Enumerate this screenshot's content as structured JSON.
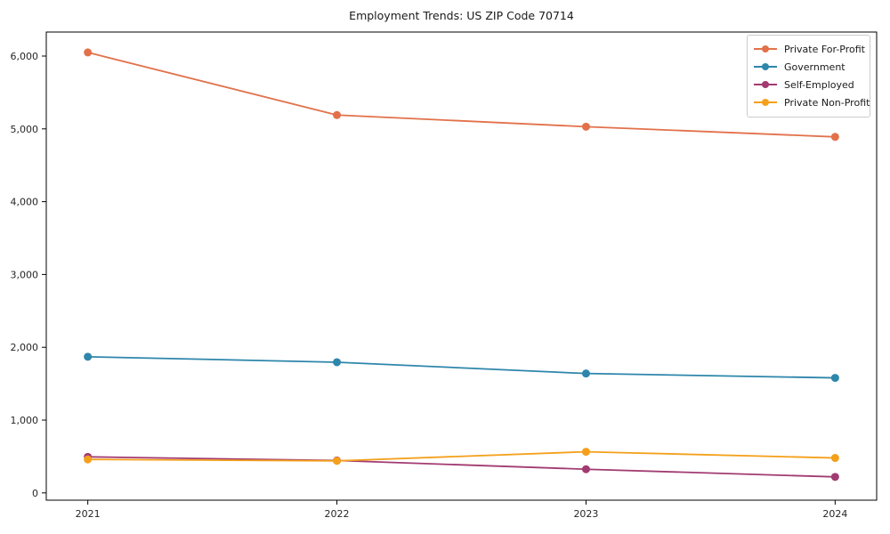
{
  "figure": {
    "title": "Employment Trends: US ZIP Code 70714"
  },
  "chart_data": {
    "type": "line",
    "title": "Employment Trends: US ZIP Code 70714",
    "xlabel": "",
    "ylabel": "",
    "categories": [
      "2021",
      "2022",
      "2023",
      "2024"
    ],
    "series": [
      {
        "name": "Private For-Profit",
        "color": "#E2714A",
        "values": [
          6050,
          5190,
          5030,
          4890
        ]
      },
      {
        "name": "Government",
        "color": "#2E86AB",
        "values": [
          1870,
          1795,
          1640,
          1580
        ]
      },
      {
        "name": "Self-Employed",
        "color": "#A23B72",
        "values": [
          495,
          445,
          325,
          220
        ]
      },
      {
        "name": "Private Non-Profit",
        "color": "#F4A01B",
        "values": [
          460,
          440,
          565,
          480
        ]
      }
    ],
    "y_ticks": {
      "values": [
        0,
        1000,
        2000,
        3000,
        4000,
        5000,
        6000
      ],
      "labels": [
        "0",
        "1,000",
        "2,000",
        "3,000",
        "4,000",
        "5,000",
        "6,000"
      ]
    },
    "ylim": [
      -100,
      6330
    ],
    "grid": false,
    "legend_position": "upper-right",
    "frame_color": "#000000",
    "tick_label_color": "#262626",
    "marker": "circle",
    "marker_radius": 4.5,
    "line_width": 1.8
  }
}
